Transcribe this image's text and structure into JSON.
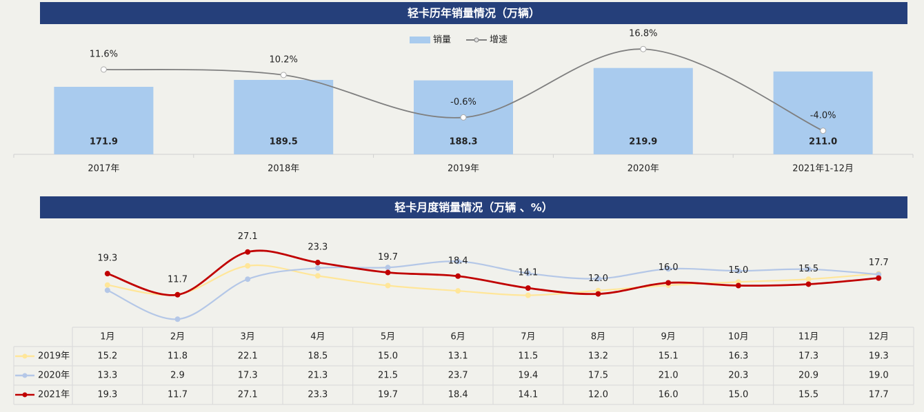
{
  "chart_data": [
    {
      "type": "bar",
      "title": "轻卡历年销量情况（万辆）",
      "categories": [
        "2017年",
        "2018年",
        "2019年",
        "2020年",
        "2021年1-12月"
      ],
      "series": [
        {
          "name": "销量",
          "type": "bar",
          "color": "#a9cbee",
          "values": [
            171.9,
            189.5,
            188.3,
            219.9,
            211.0
          ],
          "value_labels": [
            "171.9",
            "189.5",
            "188.3",
            "219.9",
            "211.0"
          ]
        },
        {
          "name": "增速",
          "type": "line",
          "axis": "y2",
          "color": "#7f7f7f",
          "values": [
            11.6,
            10.2,
            -0.6,
            16.8,
            -4.0
          ],
          "value_labels": [
            "11.6%",
            "10.2%",
            "-0.6%",
            "16.8%",
            "-4.0%"
          ]
        }
      ],
      "ylim": [
        0,
        300
      ],
      "y2lim": [
        -10,
        20
      ],
      "legend": "top"
    },
    {
      "type": "line",
      "title": "轻卡月度销量情况（万辆 、%）",
      "categories": [
        "1月",
        "2月",
        "3月",
        "4月",
        "5月",
        "6月",
        "7月",
        "8月",
        "9月",
        "10月",
        "11月",
        "12月"
      ],
      "series": [
        {
          "name": "2019年",
          "color": "#ffe699",
          "values": [
            15.2,
            11.8,
            22.1,
            18.5,
            15.0,
            13.1,
            11.5,
            13.2,
            15.1,
            16.3,
            17.3,
            19.3
          ],
          "value_labels": [
            "15.2",
            "11.8",
            "22.1",
            "18.5",
            "15.0",
            "13.1",
            "11.5",
            "13.2",
            "15.1",
            "16.3",
            "17.3",
            "19.3"
          ]
        },
        {
          "name": "2020年",
          "color": "#b4c7e7",
          "values": [
            13.3,
            2.9,
            17.3,
            21.3,
            21.5,
            23.7,
            19.4,
            17.5,
            21.0,
            20.3,
            20.9,
            19.0
          ],
          "value_labels": [
            "13.3",
            "2.9",
            "17.3",
            "21.3",
            "21.5",
            "23.7",
            "19.4",
            "17.5",
            "21.0",
            "20.3",
            "20.9",
            "19.0"
          ]
        },
        {
          "name": "2021年",
          "color": "#c00000",
          "show_labels": true,
          "values": [
            19.3,
            11.7,
            27.1,
            23.3,
            19.7,
            18.4,
            14.1,
            12.0,
            16.0,
            15.0,
            15.5,
            17.7
          ],
          "value_labels": [
            "19.3",
            "11.7",
            "27.1",
            "23.3",
            "19.7",
            "18.4",
            "14.1",
            "12.0",
            "16.0",
            "15.0",
            "15.5",
            "17.7"
          ]
        }
      ],
      "ylim": [
        0,
        30
      ],
      "data_table": true
    }
  ]
}
